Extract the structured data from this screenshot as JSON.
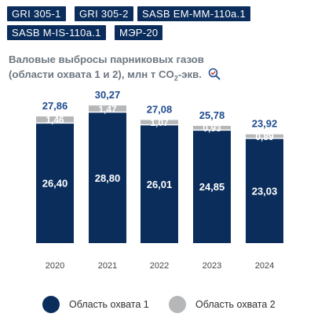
{
  "tags": [
    {
      "label": "GRI 305-1"
    },
    {
      "label": "GRI 305-2"
    },
    {
      "label": "SASB EM-MM-110a.1"
    },
    {
      "label": "SASB M-IS-110a.1"
    },
    {
      "label": "МЭР-20"
    }
  ],
  "title_line1": "Валовые выбросы парниковых газов",
  "title_line2_a": "(области охвата 1 и 2), млн т CO",
  "title_line2_sub": "2",
  "title_line2_b": "-экв.",
  "icon": "magnifier-check-icon",
  "colors": {
    "scope1": "#0b2d5c",
    "scope2": "#b5b7b9",
    "total_label": "#1e4b8f",
    "tag_bg": "#0b2d5c"
  },
  "chart_data": {
    "type": "bar",
    "stacked": true,
    "categories": [
      "2020",
      "2021",
      "2022",
      "2023",
      "2024"
    ],
    "series": [
      {
        "name": "Область охвата 1",
        "values": [
          "26,40",
          "28,80",
          "26,01",
          "24,85",
          "23,03"
        ]
      },
      {
        "name": "Область охвата 2",
        "values": [
          "1,46",
          "1,47",
          "1,07",
          "0,93",
          "0,89"
        ]
      }
    ],
    "totals": [
      "27,86",
      "30,27",
      "27,08",
      "25,78",
      "23,92"
    ],
    "grid": false,
    "legend_position": "bottom"
  }
}
